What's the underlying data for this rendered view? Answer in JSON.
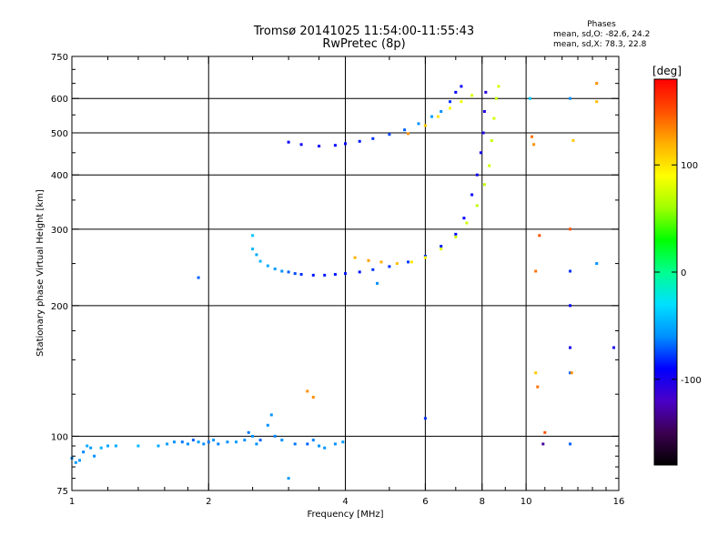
{
  "header": {
    "title": "Tromsø 20141025 11:54:00-11:55:43",
    "subtitle": "RwPretec (8p)",
    "phases_heading": "Phases",
    "stat_o": "mean, sd,O: -82.6, 24.2",
    "stat_x": "mean, sd,X: 78.3, 22.8"
  },
  "colorbar": {
    "label": "[deg]",
    "ticks": [
      {
        "value": 100,
        "label": "100"
      },
      {
        "value": 0,
        "label": "0"
      },
      {
        "value": -100,
        "label": "-100"
      }
    ],
    "range": [
      -180,
      180
    ],
    "colormap": [
      "#000000",
      "#3c0050",
      "#4a00c8",
      "#0000ff",
      "#0090ff",
      "#00e0ff",
      "#00ff90",
      "#00ff00",
      "#a0ff00",
      "#ffff00",
      "#ffb000",
      "#ff5000",
      "#ff0000"
    ]
  },
  "chart_data": {
    "type": "scatter",
    "xlabel": "Frequency [MHz]",
    "ylabel": "Stationary phase Virtual Height [km]",
    "xscale": "log",
    "yscale": "log",
    "xlim": [
      1,
      16
    ],
    "ylim": [
      75,
      750
    ],
    "xticks": [
      1,
      2,
      4,
      6,
      8,
      10,
      16
    ],
    "xticklabels": [
      "1",
      "2",
      "4",
      "6",
      "8",
      "10",
      "16"
    ],
    "yticks": [
      75,
      100,
      200,
      300,
      400,
      500,
      600,
      750
    ],
    "yticklabels": [
      "75",
      "100",
      "200",
      "300",
      "400",
      "500",
      "600",
      "750"
    ],
    "grid_x": [
      2,
      4,
      6,
      8,
      10
    ],
    "grid_y": [
      100,
      200,
      300,
      400,
      500,
      600
    ],
    "series": [
      {
        "points": [
          [
            1.0,
            89,
            -60
          ],
          [
            1.02,
            87,
            -55
          ],
          [
            1.04,
            88,
            -58
          ],
          [
            1.06,
            92,
            -62
          ],
          [
            1.08,
            95,
            -50
          ],
          [
            1.1,
            94,
            -55
          ],
          [
            1.12,
            90,
            -60
          ],
          [
            1.16,
            94,
            -48
          ],
          [
            1.2,
            95,
            -52
          ],
          [
            1.25,
            95,
            -50
          ],
          [
            1.4,
            95,
            -45
          ],
          [
            1.55,
            95,
            -50
          ],
          [
            1.62,
            96,
            -55
          ],
          [
            1.68,
            97,
            -60
          ],
          [
            1.75,
            97,
            -65
          ],
          [
            1.8,
            96,
            -60
          ],
          [
            1.85,
            98,
            -70
          ],
          [
            1.9,
            97,
            -55
          ],
          [
            1.95,
            96,
            -60
          ],
          [
            2.0,
            97,
            -65
          ],
          [
            2.05,
            98,
            -58
          ],
          [
            2.1,
            96,
            -62
          ],
          [
            2.2,
            97,
            -60
          ],
          [
            2.3,
            97,
            -55
          ],
          [
            2.4,
            98,
            -60
          ],
          [
            2.45,
            102,
            -65
          ],
          [
            2.5,
            100,
            -58
          ],
          [
            2.55,
            96,
            -60
          ],
          [
            2.6,
            98,
            -70
          ],
          [
            2.7,
            106,
            -60
          ],
          [
            2.75,
            112,
            -58
          ],
          [
            2.8,
            100,
            -62
          ],
          [
            2.9,
            98,
            -60
          ],
          [
            3.0,
            80,
            -55
          ],
          [
            3.1,
            96,
            -65
          ],
          [
            3.3,
            96,
            -70
          ],
          [
            3.4,
            98,
            -62
          ],
          [
            3.5,
            95,
            -60
          ],
          [
            3.6,
            94,
            -58
          ],
          [
            3.8,
            96,
            -60
          ],
          [
            3.95,
            97,
            -55
          ]
        ]
      },
      {
        "points": [
          [
            1.9,
            232,
            -70
          ],
          [
            2.5,
            290,
            -40
          ],
          [
            2.5,
            270,
            -45
          ],
          [
            2.55,
            262,
            -50
          ],
          [
            2.6,
            253,
            -45
          ],
          [
            2.7,
            247,
            -50
          ],
          [
            2.8,
            243,
            -55
          ],
          [
            2.9,
            240,
            -60
          ],
          [
            3.0,
            239,
            -70
          ],
          [
            3.1,
            237,
            -75
          ],
          [
            3.2,
            236,
            -80
          ],
          [
            3.4,
            235,
            -85
          ],
          [
            3.6,
            235,
            -85
          ],
          [
            3.8,
            236,
            -85
          ],
          [
            4.0,
            237,
            -85
          ],
          [
            4.3,
            239,
            -85
          ],
          [
            4.6,
            242,
            -80
          ],
          [
            5.0,
            246,
            -80
          ],
          [
            5.5,
            252,
            -78
          ],
          [
            6.0,
            260,
            -80
          ],
          [
            6.5,
            274,
            -85
          ],
          [
            7.0,
            292,
            -88
          ],
          [
            7.3,
            318,
            -90
          ],
          [
            7.6,
            360,
            -92
          ],
          [
            7.8,
            400,
            -95
          ],
          [
            7.95,
            450,
            -98
          ],
          [
            8.05,
            500,
            -100
          ],
          [
            8.1,
            560,
            -102
          ],
          [
            8.15,
            620,
            -105
          ]
        ]
      },
      {
        "points": [
          [
            4.2,
            258,
            120
          ],
          [
            4.5,
            254,
            125
          ],
          [
            4.8,
            252,
            120
          ],
          [
            5.2,
            250,
            115
          ],
          [
            5.6,
            252,
            100
          ],
          [
            6.0,
            258,
            90
          ],
          [
            6.5,
            270,
            80
          ],
          [
            7.0,
            288,
            75
          ],
          [
            7.4,
            310,
            75
          ],
          [
            7.8,
            340,
            70
          ],
          [
            8.1,
            380,
            70
          ],
          [
            8.3,
            420,
            75
          ],
          [
            8.4,
            480,
            72
          ],
          [
            8.5,
            540,
            75
          ],
          [
            8.6,
            600,
            72
          ],
          [
            8.7,
            640,
            75
          ]
        ]
      },
      {
        "points": [
          [
            3.0,
            476,
            -90
          ],
          [
            3.2,
            470,
            -95
          ],
          [
            3.5,
            466,
            -95
          ],
          [
            3.8,
            468,
            -90
          ],
          [
            4.0,
            472,
            -90
          ],
          [
            4.3,
            478,
            -85
          ],
          [
            4.6,
            485,
            -80
          ],
          [
            5.0,
            496,
            -75
          ],
          [
            5.4,
            508,
            -70
          ],
          [
            5.8,
            525,
            -60
          ],
          [
            6.2,
            545,
            -55
          ],
          [
            6.5,
            560,
            -60
          ],
          [
            6.8,
            590,
            -80
          ],
          [
            7.0,
            620,
            -90
          ],
          [
            7.2,
            640,
            -95
          ]
        ]
      },
      {
        "points": [
          [
            5.5,
            498,
            130
          ],
          [
            6.0,
            520,
            110
          ],
          [
            6.4,
            545,
            100
          ],
          [
            6.8,
            570,
            90
          ],
          [
            7.2,
            590,
            85
          ],
          [
            7.6,
            610,
            80
          ]
        ]
      },
      {
        "points": [
          [
            10.2,
            600,
            -40
          ],
          [
            10.3,
            490,
            140
          ],
          [
            10.4,
            470,
            130
          ],
          [
            10.5,
            240,
            140
          ],
          [
            10.7,
            290,
            150
          ],
          [
            10.5,
            140,
            110
          ],
          [
            10.6,
            130,
            140
          ],
          [
            10.9,
            96,
            -130
          ],
          [
            11.0,
            102,
            150
          ],
          [
            12.5,
            600,
            -60
          ],
          [
            12.5,
            300,
            150
          ],
          [
            12.5,
            240,
            -80
          ],
          [
            12.5,
            200,
            -90
          ],
          [
            12.5,
            160,
            -100
          ],
          [
            12.5,
            140,
            -70
          ],
          [
            12.5,
            96,
            -70
          ],
          [
            12.6,
            140,
            130
          ],
          [
            12.7,
            480,
            110
          ],
          [
            14.3,
            650,
            130
          ],
          [
            14.3,
            590,
            115
          ],
          [
            14.3,
            250,
            -60
          ],
          [
            15.6,
            160,
            -100
          ],
          [
            6.0,
            110,
            -80
          ],
          [
            4.7,
            225,
            -60
          ],
          [
            3.3,
            127,
            130
          ],
          [
            3.4,
            123,
            130
          ]
        ]
      }
    ]
  }
}
